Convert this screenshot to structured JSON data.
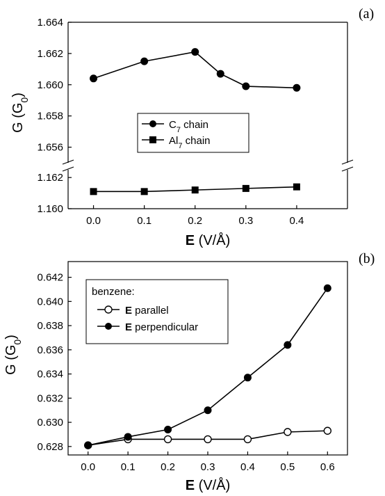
{
  "chart_data": [
    {
      "panel_label": "(a)",
      "type": "line",
      "xlabel_bold": "E",
      "xlabel_rest": " (V/Å)",
      "ylabel_main": "G (G",
      "ylabel_sub": "0",
      "ylabel_end": ")",
      "xlim": [
        -0.05,
        0.5
      ],
      "x_ticks": [
        "0.0",
        "0.1",
        "0.2",
        "0.3",
        "0.4"
      ],
      "y_broken": true,
      "ylim_upper": [
        1.655,
        1.664
      ],
      "y_ticks_upper": [
        "1.656",
        "1.658",
        "1.660",
        "1.662",
        "1.664"
      ],
      "ylim_lower": [
        1.16,
        1.1625
      ],
      "y_ticks_lower": [
        "1.160",
        "1.162"
      ],
      "series": [
        {
          "name_main": "C",
          "name_sub": "7",
          "name_end": " chain",
          "marker": "circle-filled",
          "x": [
            0.0,
            0.1,
            0.2,
            0.25,
            0.3,
            0.4
          ],
          "y": [
            1.6604,
            1.6615,
            1.6621,
            1.6607,
            1.6599,
            1.6598
          ]
        },
        {
          "name_main": "Al",
          "name_sub": "7",
          "name_end": " chain",
          "marker": "square-filled",
          "x": [
            0.0,
            0.1,
            0.2,
            0.3,
            0.4
          ],
          "y": [
            1.1611,
            1.1611,
            1.1612,
            1.1613,
            1.1614
          ]
        }
      ]
    },
    {
      "panel_label": "(b)",
      "type": "line",
      "xlabel_bold": "E",
      "xlabel_rest": " (V/Å)",
      "ylabel_main": "G (G",
      "ylabel_sub": "0",
      "ylabel_end": ")",
      "xlim": [
        -0.05,
        0.65
      ],
      "ylim": [
        0.6273,
        0.6433
      ],
      "x_ticks": [
        "0.0",
        "0.1",
        "0.2",
        "0.3",
        "0.4",
        "0.5",
        "0.6"
      ],
      "y_ticks": [
        "0.628",
        "0.630",
        "0.632",
        "0.634",
        "0.636",
        "0.638",
        "0.640",
        "0.642"
      ],
      "legend_title": "benzene:",
      "series": [
        {
          "name_bold": "E",
          "name_rest": " parallel",
          "marker": "circle-open",
          "x": [
            0.0,
            0.1,
            0.2,
            0.3,
            0.4,
            0.5,
            0.6
          ],
          "y": [
            0.6281,
            0.6286,
            0.6286,
            0.6286,
            0.6286,
            0.6292,
            0.6293
          ]
        },
        {
          "name_bold": "E",
          "name_rest": " perpendicular",
          "marker": "circle-filled",
          "x": [
            0.0,
            0.1,
            0.2,
            0.3,
            0.4,
            0.5,
            0.6
          ],
          "y": [
            0.6281,
            0.6288,
            0.6294,
            0.631,
            0.6337,
            0.6364,
            0.6411
          ]
        }
      ]
    }
  ]
}
